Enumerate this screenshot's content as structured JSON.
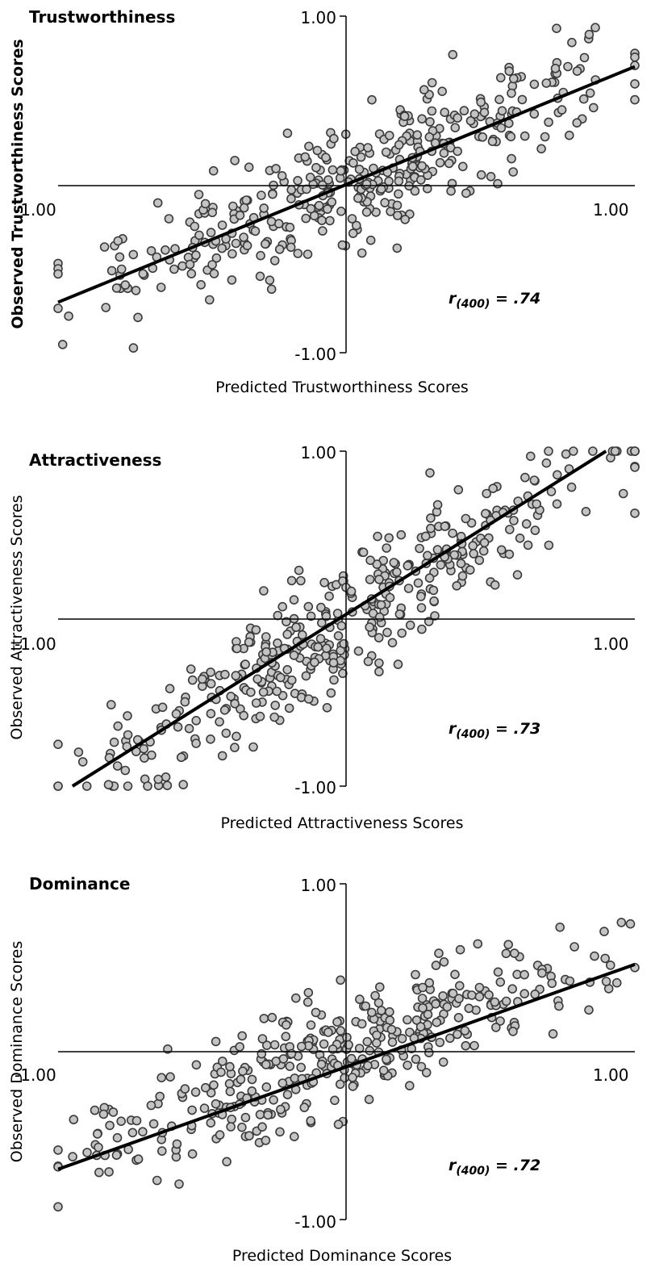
{
  "chart_data": [
    {
      "type": "scatter",
      "title": "Trustworthiness",
      "xlabel": "Predicted Trustworthiness Scores",
      "ylabel": "Observed Trustworthiness Scores",
      "ylabel_bold": true,
      "xlim": [
        -1,
        1
      ],
      "ylim": [
        -1,
        1
      ],
      "ticks": {
        "x_min": "-1.00",
        "x_max": "1.00",
        "y_min": "-1.00",
        "y_max": "1.00"
      },
      "grid": false,
      "r_label": {
        "prefix": "r",
        "sub": "(400)",
        "value": " = .74"
      },
      "fit_line": {
        "x1": -1,
        "y1": -0.7,
        "x2": 1,
        "y2": 0.7
      },
      "n_points": 400,
      "slope": 0.7,
      "spread": 0.26,
      "seed": 11
    },
    {
      "type": "scatter",
      "title": "Attractiveness",
      "xlabel": "Predicted Attractiveness Scores",
      "ylabel": "Observed Attractiveness Scores",
      "ylabel_bold": false,
      "xlim": [
        -1,
        1
      ],
      "ylim": [
        -1,
        1
      ],
      "ticks": {
        "x_min": "-1.00",
        "x_max": "1.00",
        "y_min": "-1.00",
        "y_max": "1.00"
      },
      "grid": false,
      "r_label": {
        "prefix": "r",
        "sub": "(400)",
        "value": " = .73"
      },
      "fit_line": {
        "x1": -0.95,
        "y1": -1,
        "x2": 0.9,
        "y2": 1
      },
      "n_points": 400,
      "slope": 1.08,
      "spread": 0.27,
      "seed": 23
    },
    {
      "type": "scatter",
      "title": "Dominance",
      "xlabel": "Predicted Dominance Scores",
      "ylabel": "Observed Dominance Scores",
      "ylabel_bold": false,
      "xlim": [
        -1,
        1
      ],
      "ylim": [
        -1,
        1
      ],
      "ticks": {
        "x_min": "-1.00",
        "x_max": "1.00",
        "y_min": "-1.00",
        "y_max": "1.00"
      },
      "grid": false,
      "r_label": {
        "prefix": "r",
        "sub": "(400)",
        "value": " = .72"
      },
      "fit_line": {
        "x1": -1,
        "y1": -0.7,
        "x2": 1,
        "y2": 0.52
      },
      "n_points": 400,
      "slope": 0.61,
      "spread": 0.25,
      "seed": 37
    }
  ]
}
